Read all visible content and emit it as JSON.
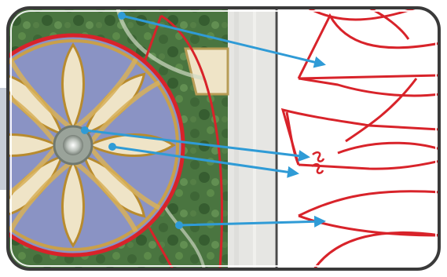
{
  "figure": {
    "description_kind": "material-to-line-art comparison",
    "colors": {
      "frame": "#3a3a3a",
      "outline_red": "#d8232a",
      "arrow_blue": "#2f9bd6",
      "divider": "#4a4a4a",
      "marble_grey": "#e6e6e3",
      "grass_dark": "#3f6a36",
      "grass_mid": "#5f8a4c",
      "tile_blue": "#8a93c4",
      "tile_gold": "#d8b15a",
      "tile_cream": "#efe4c7",
      "side_panel": "#b9c0cc"
    },
    "arrow_count": 4,
    "icon": "arrow-head-icon"
  }
}
